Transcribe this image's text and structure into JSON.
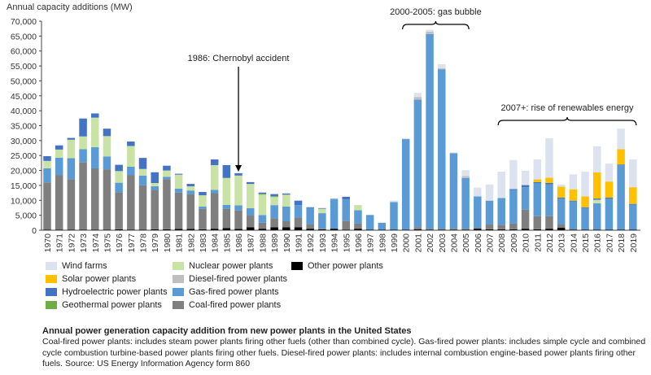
{
  "chart_data": {
    "type": "bar",
    "stacked": true,
    "ylabel": "Annual capacity additions (MW)",
    "ylim": [
      0,
      70000
    ],
    "yticks": [
      0,
      5000,
      10000,
      15000,
      20000,
      25000,
      30000,
      35000,
      40000,
      45000,
      50000,
      55000,
      60000,
      65000,
      70000
    ],
    "ytick_labels": [
      "0",
      "5,000",
      "10,000",
      "15,000",
      "20,000",
      "25,000",
      "30,000",
      "35,000",
      "40,000",
      "45,000",
      "50,000",
      "55,000",
      "60,000",
      "65,000",
      "70,000"
    ],
    "grid": false,
    "legend_position": "bottom-left",
    "categories": [
      "1970",
      "1971",
      "1972",
      "1973",
      "1974",
      "1975",
      "1976",
      "1977",
      "1978",
      "1979",
      "1980",
      "1981",
      "1982",
      "1983",
      "1984",
      "1985",
      "1986",
      "1987",
      "1988",
      "1989",
      "1990",
      "1991",
      "1992",
      "1993",
      "1994",
      "1995",
      "1996",
      "1997",
      "1998",
      "1999",
      "2000",
      "2001",
      "2002",
      "2003",
      "2004",
      "2005",
      "2006",
      "2007",
      "2008",
      "2009",
      "2010",
      "2011",
      "2012",
      "2013",
      "2014",
      "2015",
      "2016",
      "2017",
      "2018",
      "2019"
    ],
    "series": [
      {
        "name": "Other power plants",
        "color": "#000000",
        "values": [
          200,
          200,
          200,
          200,
          200,
          200,
          300,
          200,
          200,
          300,
          300,
          400,
          400,
          300,
          500,
          700,
          400,
          1000,
          500,
          1000,
          1000,
          1000,
          500,
          300,
          500,
          200,
          500,
          200,
          200,
          200,
          200,
          300,
          200,
          200,
          200,
          200,
          500,
          300,
          300,
          300,
          500,
          300,
          500,
          800,
          200,
          200,
          200,
          200,
          200,
          200
        ]
      },
      {
        "name": "Coal-fired power plants",
        "color": "#7f7f7f",
        "values": [
          15800,
          18300,
          16900,
          22500,
          20500,
          20200,
          12400,
          18300,
          14800,
          13200,
          16800,
          12200,
          11600,
          6800,
          11900,
          6400,
          6200,
          3900,
          2000,
          3000,
          2000,
          3200,
          1400,
          200,
          0,
          2900,
          1700,
          0,
          0,
          0,
          0,
          700,
          300,
          300,
          300,
          300,
          300,
          1600,
          1500,
          1900,
          6400,
          4400,
          4200,
          1100,
          200,
          0,
          0,
          0,
          0,
          0
        ]
      },
      {
        "name": "Gas-fired power plants",
        "color": "#5b9bd5",
        "values": [
          4700,
          5800,
          7000,
          4400,
          7100,
          4300,
          3200,
          2800,
          3300,
          1200,
          800,
          1300,
          1300,
          800,
          1100,
          1400,
          1700,
          2500,
          2600,
          4400,
          4900,
          4200,
          5600,
          5200,
          9800,
          7200,
          4500,
          4900,
          2300,
          9200,
          30300,
          42700,
          65200,
          53400,
          25300,
          17000,
          10500,
          8000,
          9000,
          11300,
          7500,
          11100,
          10600,
          8700,
          9200,
          7200,
          8800,
          10400,
          21500,
          8300
        ]
      },
      {
        "name": "Diesel-fired power plants",
        "color": "#bfbfbf",
        "values": [
          0,
          0,
          0,
          0,
          0,
          0,
          0,
          0,
          0,
          0,
          0,
          0,
          0,
          0,
          0,
          0,
          0,
          0,
          0,
          0,
          0,
          0,
          0,
          0,
          0,
          0,
          0,
          0,
          0,
          0,
          0,
          900,
          800,
          300,
          0,
          600,
          0,
          0,
          0,
          0,
          0,
          0,
          0,
          0,
          0,
          0,
          0,
          0,
          0,
          0
        ]
      },
      {
        "name": "Nuclear power plants",
        "color": "#c9e2a6",
        "values": [
          2500,
          2700,
          6200,
          4300,
          9900,
          6800,
          3900,
          6900,
          2200,
          1100,
          2100,
          4700,
          1400,
          3800,
          8300,
          9000,
          10000,
          8100,
          6800,
          2700,
          4000,
          0,
          0,
          1500,
          0,
          0,
          1700,
          0,
          0,
          0,
          0,
          0,
          0,
          0,
          0,
          0,
          0,
          0,
          0,
          0,
          0,
          0,
          0,
          0,
          0,
          0,
          1200,
          0,
          0,
          0
        ]
      },
      {
        "name": "Geothermal power plants",
        "color": "#70ad47",
        "values": [
          0,
          0,
          0,
          0,
          0,
          0,
          0,
          0,
          0,
          0,
          0,
          0,
          0,
          0,
          0,
          0,
          0,
          0,
          300,
          300,
          0,
          0,
          0,
          0,
          0,
          0,
          0,
          0,
          0,
          0,
          0,
          0,
          0,
          0,
          0,
          0,
          0,
          0,
          0,
          0,
          0,
          0,
          0,
          0,
          0,
          0,
          0,
          0,
          0,
          0
        ]
      },
      {
        "name": "Hydroelectric power plants",
        "color": "#4472c4",
        "values": [
          1600,
          1400,
          600,
          6000,
          1400,
          2500,
          2100,
          1500,
          3700,
          3600,
          1600,
          300,
          800,
          1100,
          1900,
          4300,
          800,
          600,
          400,
          700,
          400,
          1500,
          200,
          200,
          200,
          900,
          0,
          0,
          0,
          0,
          0,
          0,
          0,
          0,
          0,
          0,
          0,
          0,
          0,
          300,
          700,
          300,
          500,
          300,
          300,
          300,
          400,
          300,
          300,
          300
        ]
      },
      {
        "name": "Solar power plants",
        "color": "#ffc000",
        "values": [
          0,
          0,
          0,
          0,
          0,
          0,
          0,
          0,
          0,
          0,
          0,
          0,
          0,
          0,
          0,
          0,
          0,
          0,
          0,
          0,
          0,
          0,
          0,
          0,
          0,
          0,
          0,
          0,
          0,
          0,
          0,
          0,
          0,
          0,
          0,
          0,
          0,
          0,
          0,
          0,
          0,
          900,
          1800,
          3700,
          3800,
          3600,
          8800,
          5400,
          5100,
          5600
        ]
      },
      {
        "name": "Wind farms",
        "color": "#dde3ee",
        "values": [
          0,
          0,
          0,
          0,
          0,
          0,
          0,
          0,
          0,
          0,
          0,
          0,
          0,
          0,
          0,
          0,
          0,
          0,
          0,
          0,
          0,
          0,
          0,
          0,
          0,
          0,
          0,
          0,
          0,
          500,
          300,
          1400,
          600,
          1400,
          300,
          2000,
          3000,
          5400,
          8800,
          9700,
          4800,
          6700,
          13200,
          700,
          5000,
          8300,
          8700,
          6000,
          6900,
          9300
        ]
      }
    ],
    "legend_order": [
      "Wind farms",
      "Solar power plants",
      "Hydroelectric power plants",
      "Geothermal power plants",
      "Nuclear power plants",
      "Diesel-fired power plants",
      "Gas-fired power plants",
      "Coal-fired power plants",
      "Other power plants"
    ],
    "annotations": [
      {
        "text": "1986: Chernobyl accident",
        "year": "1986",
        "kind": "arrow"
      },
      {
        "text": "2000-2005: gas bubble",
        "from": "2000",
        "to": "2005",
        "kind": "brace"
      },
      {
        "text": "2007+: rise of renewables energy",
        "from": "2007",
        "to": "2019",
        "kind": "brace"
      }
    ]
  },
  "caption": {
    "title": "Annual power generation capacity addition from new power plants in the United States",
    "body": "Coal-fired power plants: includes steam power plants firing other fuels (other than combined cycle). Gas-fired power plants: includes simple cycle and combined cycle combustion turbine-based power plants firing other fuels. Diesel-fired power plants: includes internal combustion engine-based power plants firing other fuels. Source: US Energy Information Agency form 860"
  }
}
